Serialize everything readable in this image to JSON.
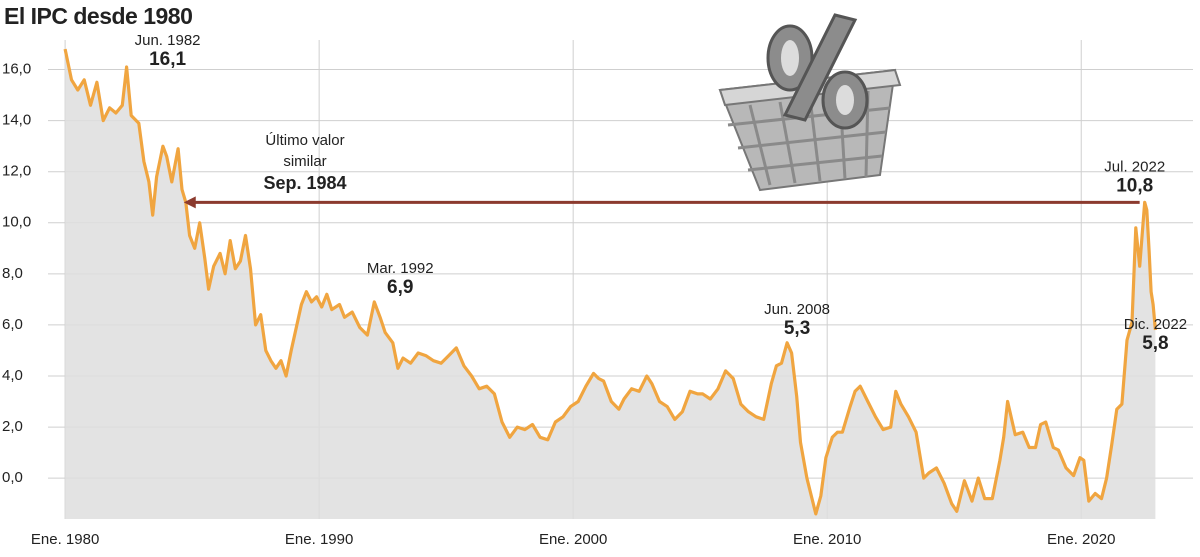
{
  "chart_data": {
    "type": "line",
    "title": "El IPC desde 1980",
    "xlim": [
      1978.5,
      2024.4
    ],
    "ylim": [
      -1.6,
      17.0
    ],
    "xticks": [
      {
        "value": 1980,
        "label": "Ene. 1980"
      },
      {
        "value": 1990,
        "label": "Ene. 1990"
      },
      {
        "value": 2000,
        "label": "Ene. 2000"
      },
      {
        "value": 2010,
        "label": "Ene. 2010"
      },
      {
        "value": 2020,
        "label": "Ene. 2020"
      }
    ],
    "yticks": [
      {
        "value": 0,
        "label": "0,0"
      },
      {
        "value": 2,
        "label": "2,0"
      },
      {
        "value": 4,
        "label": "4,0"
      },
      {
        "value": 6,
        "label": "6,0"
      },
      {
        "value": 8,
        "label": "8,0"
      },
      {
        "value": 10,
        "label": "10,0"
      },
      {
        "value": 12,
        "label": "12,0"
      },
      {
        "value": 14,
        "label": "14,0"
      },
      {
        "value": 16,
        "label": "16,0"
      }
    ],
    "grid": true,
    "color": "#f0a540",
    "area_color": "#dedede",
    "x": [
      1980.0,
      1980.25,
      1980.5,
      1980.75,
      1981.0,
      1981.25,
      1981.5,
      1981.75,
      1982.0,
      1982.25,
      1982.42,
      1982.6,
      1982.9,
      1983.1,
      1983.3,
      1983.45,
      1983.6,
      1983.85,
      1984.0,
      1984.2,
      1984.45,
      1984.6,
      1984.75,
      1984.9,
      1985.1,
      1985.3,
      1985.5,
      1985.65,
      1985.85,
      1986.1,
      1986.3,
      1986.5,
      1986.7,
      1986.9,
      1987.1,
      1987.3,
      1987.5,
      1987.7,
      1987.9,
      1988.1,
      1988.3,
      1988.5,
      1988.7,
      1988.9,
      1989.1,
      1989.3,
      1989.5,
      1989.7,
      1989.9,
      1990.1,
      1990.3,
      1990.5,
      1990.8,
      1991.0,
      1991.3,
      1991.6,
      1991.9,
      1992.17,
      1992.4,
      1992.6,
      1992.9,
      1993.1,
      1993.3,
      1993.6,
      1993.9,
      1994.2,
      1994.5,
      1994.8,
      1995.1,
      1995.4,
      1995.7,
      1996.0,
      1996.3,
      1996.6,
      1996.9,
      1997.2,
      1997.5,
      1997.8,
      1998.1,
      1998.4,
      1998.7,
      1999.0,
      1999.3,
      1999.6,
      1999.9,
      2000.2,
      2000.5,
      2000.8,
      2001.0,
      2001.2,
      2001.5,
      2001.8,
      2002.0,
      2002.3,
      2002.6,
      2002.9,
      2003.1,
      2003.4,
      2003.7,
      2004.0,
      2004.3,
      2004.6,
      2004.9,
      2005.1,
      2005.4,
      2005.7,
      2006.0,
      2006.3,
      2006.6,
      2006.9,
      2007.2,
      2007.5,
      2007.8,
      2008.0,
      2008.2,
      2008.42,
      2008.6,
      2008.8,
      2008.95,
      2009.2,
      2009.4,
      2009.55,
      2009.75,
      2009.95,
      2010.2,
      2010.4,
      2010.6,
      2010.9,
      2011.1,
      2011.3,
      2011.6,
      2011.9,
      2012.2,
      2012.5,
      2012.7,
      2012.9,
      2013.2,
      2013.5,
      2013.8,
      2014.0,
      2014.3,
      2014.6,
      2014.9,
      2015.1,
      2015.4,
      2015.7,
      2015.95,
      2016.2,
      2016.5,
      2016.8,
      2016.95,
      2017.1,
      2017.4,
      2017.7,
      2017.95,
      2018.2,
      2018.4,
      2018.6,
      2018.9,
      2019.1,
      2019.4,
      2019.7,
      2019.95,
      2020.1,
      2020.3,
      2020.55,
      2020.8,
      2021.0,
      2021.2,
      2021.4,
      2021.6,
      2021.8,
      2022.0,
      2022.15,
      2022.3,
      2022.5,
      2022.58,
      2022.67,
      2022.75,
      2022.83,
      2022.92
    ],
    "values": [
      16.8,
      15.6,
      15.2,
      15.6,
      14.6,
      15.5,
      14.0,
      14.5,
      14.3,
      14.6,
      16.1,
      14.2,
      13.9,
      12.4,
      11.6,
      10.3,
      11.8,
      13.0,
      12.6,
      11.6,
      12.9,
      11.3,
      10.8,
      9.5,
      9.0,
      10.0,
      8.6,
      7.4,
      8.3,
      8.8,
      8.0,
      9.3,
      8.2,
      8.5,
      9.5,
      8.2,
      6.0,
      6.4,
      5.0,
      4.6,
      4.3,
      4.6,
      4.0,
      5.0,
      5.9,
      6.8,
      7.3,
      6.9,
      7.1,
      6.7,
      7.2,
      6.6,
      6.8,
      6.3,
      6.5,
      5.9,
      5.6,
      6.9,
      6.3,
      5.7,
      5.3,
      4.3,
      4.7,
      4.5,
      4.9,
      4.8,
      4.6,
      4.5,
      4.8,
      5.1,
      4.4,
      4.0,
      3.5,
      3.6,
      3.3,
      2.2,
      1.6,
      2.0,
      1.9,
      2.1,
      1.6,
      1.5,
      2.2,
      2.4,
      2.8,
      3.0,
      3.6,
      4.1,
      3.9,
      3.8,
      3.0,
      2.7,
      3.1,
      3.5,
      3.4,
      4.0,
      3.7,
      3.0,
      2.8,
      2.3,
      2.6,
      3.4,
      3.3,
      3.3,
      3.1,
      3.5,
      4.2,
      3.9,
      2.9,
      2.6,
      2.4,
      2.3,
      3.7,
      4.4,
      4.5,
      5.3,
      4.9,
      3.2,
      1.4,
      0.0,
      -0.8,
      -1.4,
      -0.7,
      0.8,
      1.6,
      1.8,
      1.8,
      2.8,
      3.4,
      3.6,
      3.0,
      2.4,
      1.9,
      2.0,
      3.4,
      2.9,
      2.4,
      1.8,
      0.0,
      0.2,
      0.4,
      -0.2,
      -1.0,
      -1.3,
      -0.1,
      -0.9,
      0.0,
      -0.8,
      -0.8,
      0.7,
      1.6,
      3.0,
      1.7,
      1.8,
      1.2,
      1.2,
      2.1,
      2.2,
      1.2,
      1.1,
      0.4,
      0.1,
      0.8,
      0.7,
      -0.9,
      -0.6,
      -0.8,
      0.0,
      1.3,
      2.7,
      2.9,
      5.4,
      6.1,
      9.8,
      8.3,
      10.8,
      10.5,
      8.9,
      7.3,
      6.8,
      5.8
    ],
    "annotations": [
      {
        "date": "Jun. 1982",
        "x": 1982.42,
        "value": {
          "value": 16.1,
          "label": "16,1"
        }
      },
      {
        "date": "Mar. 1992",
        "x": 1992.17,
        "value": {
          "value": 6.9,
          "label": "6,9"
        }
      },
      {
        "date": "Jun. 2008",
        "x": 2008.42,
        "value": {
          "value": 5.3,
          "label": "5,3"
        }
      },
      {
        "date": "Jul. 2022",
        "x": 2022.5,
        "value": {
          "value": 10.8,
          "label": "10,8"
        }
      },
      {
        "date": "Dic. 2022",
        "x": 2022.92,
        "value": {
          "value": 5.8,
          "label": "5,8"
        }
      }
    ],
    "arrow": {
      "lines": [
        "Último valor",
        "similar"
      ],
      "date": "Sep. 1984",
      "x": [
        1984.67,
        2022.3
      ],
      "y": 10.8,
      "color": "#8b3a2e"
    }
  }
}
